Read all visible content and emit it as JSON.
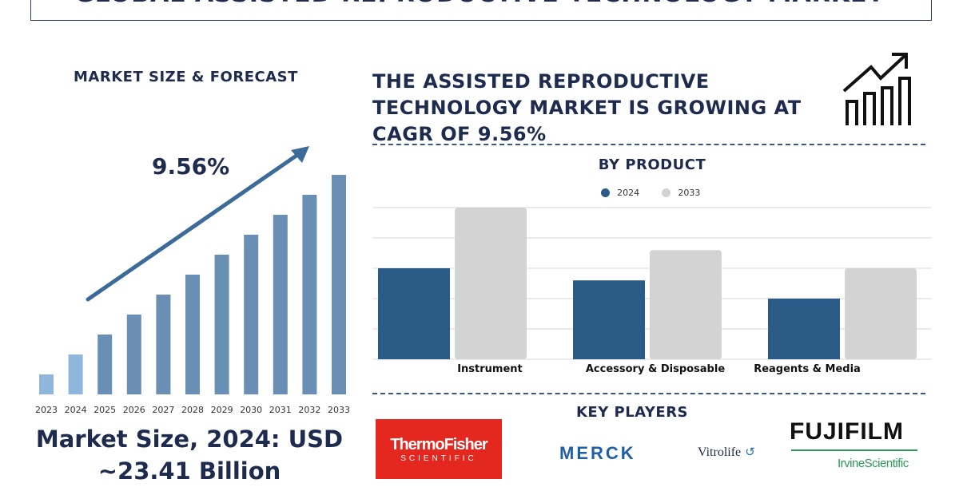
{
  "title": "GLOBAL ASSISTED REPRODUCTIVE TECHNOLOGY MARKET",
  "left_panel": {
    "heading": "MARKET SIZE & FORECAST",
    "cagr_label": "9.56%",
    "market_size_line1": "Market Size, 2024: USD",
    "market_size_line2": "~23.41 Billion"
  },
  "headline": "THE ASSISTED REPRODUCTIVE TECHNOLOGY MARKET IS GROWING AT CAGR OF 9.56%",
  "by_product_heading": "BY PRODUCT",
  "key_players_heading": "KEY PLAYERS",
  "logos": {
    "thermo_line1": "ThermoFisher",
    "thermo_line2": "SCIENTIFIC",
    "merck": "MERCK",
    "vitrolife": "Vitrolife",
    "fujifilm": "FUJIFILM",
    "irvine": "IrvineScientific"
  },
  "colors": {
    "navy": "#1d2b4f",
    "bar_2024": "#2b5b87",
    "bar_2033": "#d3d3d3",
    "forecast_light": "#8fb7dc",
    "forecast_mid": "#6a8fb5",
    "thermo_red": "#e5281f",
    "merck_blue": "#1f5fa8",
    "fuji_green": "#2a9a55"
  },
  "chart_data": [
    {
      "type": "bar",
      "title": "MARKET SIZE & FORECAST",
      "categories": [
        "2023",
        "2024",
        "2025",
        "2026",
        "2027",
        "2028",
        "2029",
        "2030",
        "2031",
        "2032",
        "2033"
      ],
      "values": [
        1.0,
        2.0,
        3.0,
        4.0,
        5.0,
        6.0,
        7.0,
        8.0,
        9.0,
        10.0,
        11.0
      ],
      "ylim": [
        0,
        11
      ]
    },
    {
      "type": "bar",
      "title": "BY PRODUCT",
      "categories": [
        "Instrument",
        "Accessory & Disposable",
        "Reagents & Media"
      ],
      "series": [
        {
          "name": "2024",
          "values": [
            3.0,
            2.6,
            2.0
          ]
        },
        {
          "name": "2033",
          "values": [
            5.0,
            3.6,
            3.0
          ]
        }
      ],
      "ylim": [
        0,
        5
      ],
      "grid": true,
      "legend": "top-center"
    }
  ]
}
